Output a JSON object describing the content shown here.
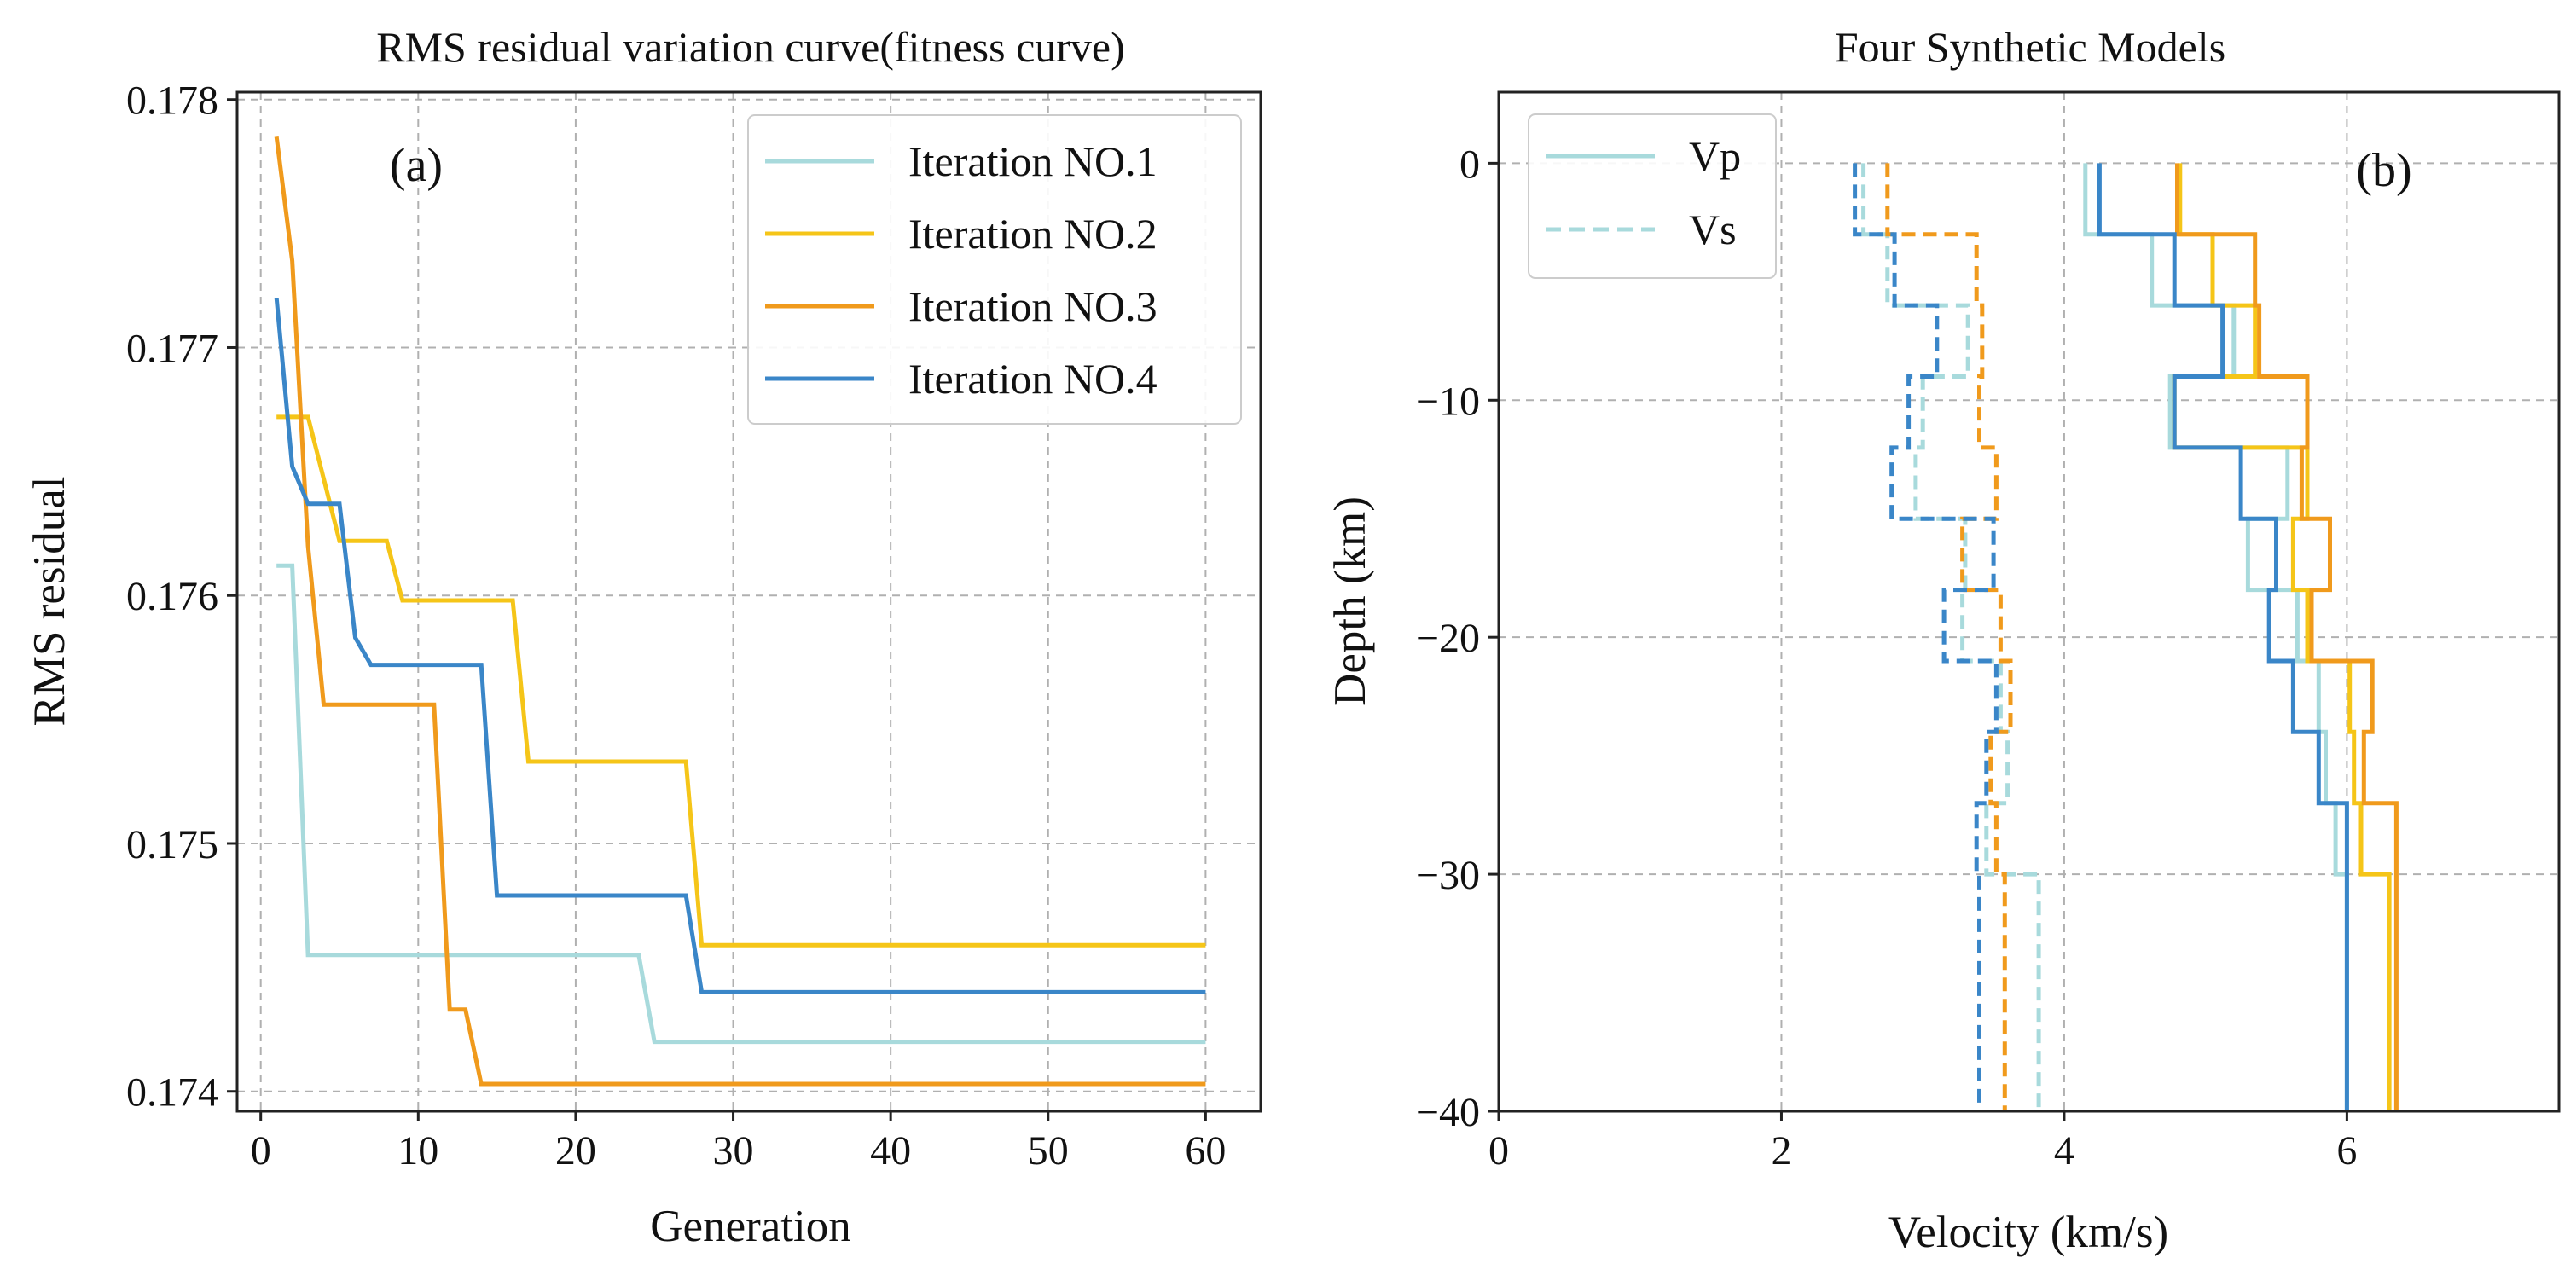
{
  "chart_data": [
    {
      "type": "line",
      "title": "RMS residual variation curve(fitness curve)",
      "xlabel": "Generation",
      "ylabel": "RMS residual",
      "panel_label": "(a)",
      "xlim": [
        -1.5,
        63.5
      ],
      "ylim": [
        0.17392,
        0.17803
      ],
      "xticks": [
        0,
        10,
        20,
        30,
        40,
        50,
        60
      ],
      "xtick_labels": [
        "0",
        "10",
        "20",
        "30",
        "40",
        "50",
        "60"
      ],
      "yticks": [
        0.174,
        0.175,
        0.176,
        0.177,
        0.178
      ],
      "ytick_labels": [
        "0.174",
        "0.175",
        "0.176",
        "0.177",
        "0.178"
      ],
      "grid": true,
      "legend_position": "top-right",
      "series": [
        {
          "name": "Iteration NO.1",
          "color": "#a8dadc",
          "points": [
            [
              1,
              0.17612
            ],
            [
              2,
              0.17612
            ],
            [
              3,
              0.17455
            ],
            [
              24,
              0.17455
            ],
            [
              25,
              0.1742
            ],
            [
              60,
              0.1742
            ]
          ]
        },
        {
          "name": "Iteration NO.2",
          "color": "#f5c518",
          "points": [
            [
              1,
              0.17672
            ],
            [
              3,
              0.17672
            ],
            [
              5,
              0.17622
            ],
            [
              8,
              0.17622
            ],
            [
              9,
              0.17598
            ],
            [
              16,
              0.17598
            ],
            [
              17,
              0.17533
            ],
            [
              27,
              0.17533
            ],
            [
              28,
              0.17459
            ],
            [
              60,
              0.17459
            ]
          ]
        },
        {
          "name": "Iteration NO.3",
          "color": "#f09a1c",
          "points": [
            [
              1,
              0.17785
            ],
            [
              2,
              0.17735
            ],
            [
              3,
              0.1762
            ],
            [
              4,
              0.17556
            ],
            [
              11,
              0.17556
            ],
            [
              12,
              0.17433
            ],
            [
              13,
              0.17433
            ],
            [
              14,
              0.17403
            ],
            [
              60,
              0.17403
            ]
          ]
        },
        {
          "name": "Iteration NO.4",
          "color": "#3a86c8",
          "points": [
            [
              1,
              0.1772
            ],
            [
              2,
              0.17652
            ],
            [
              3,
              0.17637
            ],
            [
              5,
              0.17637
            ],
            [
              6,
              0.17583
            ],
            [
              7,
              0.17572
            ],
            [
              14,
              0.17572
            ],
            [
              15,
              0.17479
            ],
            [
              27,
              0.17479
            ],
            [
              28,
              0.1744
            ],
            [
              60,
              0.1744
            ]
          ]
        }
      ]
    },
    {
      "type": "line",
      "title": "Four Synthetic Models",
      "xlabel": "Velocity (km/s)",
      "ylabel": "Depth (km)",
      "panel_label": "(b)",
      "xlim": [
        0,
        7.5
      ],
      "ylim": [
        -40,
        3
      ],
      "xticks": [
        0,
        2,
        4,
        6
      ],
      "xtick_labels": [
        "0",
        "2",
        "4",
        "6"
      ],
      "yticks": [
        0,
        -10,
        -20,
        -30,
        -40
      ],
      "ytick_labels": [
        "0",
        "−10",
        "−20",
        "−30",
        "−40"
      ],
      "grid": true,
      "legend_position": "top-left",
      "legend": [
        {
          "label": "Vp",
          "style": "solid",
          "color": "#a8dadc"
        },
        {
          "label": "Vs",
          "style": "dashed",
          "color": "#a8dadc"
        }
      ],
      "layer_boundaries_km": [
        0,
        -3,
        -6,
        -9,
        -12,
        -15,
        -18,
        -21,
        -24,
        -27,
        -30,
        -40
      ],
      "models": [
        {
          "name": "Iteration NO.1",
          "color": "#a8dadc",
          "vp": [
            4.15,
            4.62,
            5.2,
            4.75,
            5.58,
            5.3,
            5.65,
            5.8,
            5.85,
            5.92,
            6.0
          ],
          "vs": [
            2.58,
            2.75,
            3.32,
            3.0,
            2.95,
            3.3,
            3.28,
            3.55,
            3.6,
            3.45,
            3.82
          ]
        },
        {
          "name": "Iteration NO.2",
          "color": "#f5c518",
          "vp": [
            4.82,
            5.05,
            5.35,
            4.78,
            5.72,
            5.62,
            5.72,
            6.02,
            6.05,
            6.1,
            6.3
          ]
        },
        {
          "name": "Iteration NO.3",
          "color": "#f09a1c",
          "vp": [
            4.8,
            5.35,
            5.38,
            5.72,
            5.68,
            5.88,
            5.75,
            6.18,
            6.12,
            6.35,
            6.35
          ],
          "vs": [
            2.75,
            3.38,
            3.42,
            3.4,
            3.52,
            3.28,
            3.55,
            3.62,
            3.48,
            3.52,
            3.58
          ]
        },
        {
          "name": "Iteration NO.4",
          "color": "#3a86c8",
          "vp": [
            4.25,
            4.78,
            5.12,
            4.78,
            5.25,
            5.5,
            5.45,
            5.62,
            5.8,
            6.0,
            6.0
          ],
          "vs": [
            2.52,
            2.8,
            3.1,
            2.9,
            2.78,
            3.5,
            3.15,
            3.52,
            3.45,
            3.38,
            3.4
          ]
        }
      ]
    }
  ]
}
